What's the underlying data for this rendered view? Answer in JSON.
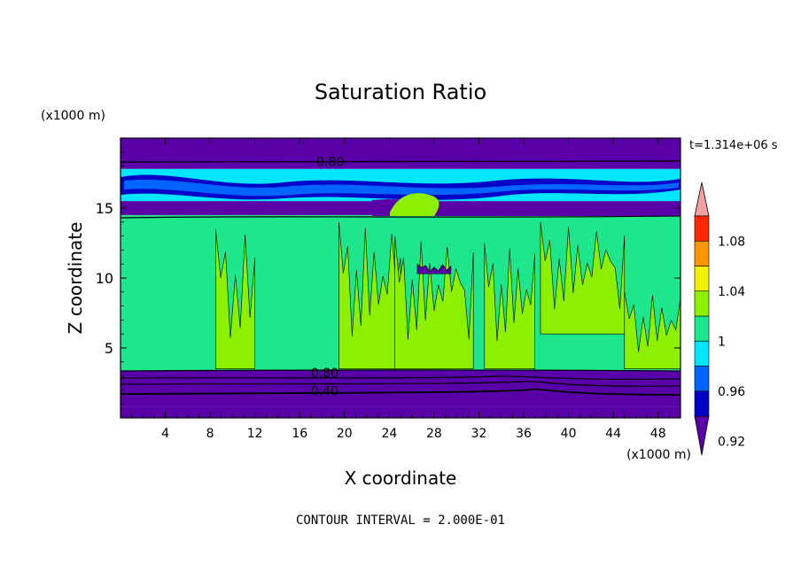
{
  "chart_data": {
    "type": "heatmap",
    "title": "Saturation Ratio",
    "xlabel": "X coordinate",
    "ylabel": "Z coordinate",
    "x_unit": "(x1000 m)",
    "y_unit": "(x1000 m)",
    "time_label": "t=1.314e+06 s",
    "footer": "CONTOUR INTERVAL = 2.000E-01",
    "xlim": [
      0,
      50
    ],
    "ylim": [
      0,
      20
    ],
    "x_ticks": [
      4,
      8,
      12,
      16,
      20,
      24,
      28,
      32,
      36,
      40,
      44,
      48
    ],
    "y_ticks": [
      5,
      10,
      15
    ],
    "contour_labels": [
      {
        "text": "0.80",
        "x": 17.5,
        "z": 18.2
      },
      {
        "text": "0.80",
        "x": 17.0,
        "z": 3.1
      },
      {
        "text": "0.40",
        "x": 17.0,
        "z": 1.8
      }
    ],
    "colorbar": {
      "levels": [
        "1.08",
        "1.04",
        "1",
        "0.96",
        "0.92"
      ],
      "colors": [
        "#5a00a8",
        "#0000c8",
        "#0064ff",
        "#00e6ff",
        "#1ee68c",
        "#8cf000",
        "#f0f000",
        "#ff9600",
        "#ff2800",
        "#f5a0a0"
      ]
    },
    "layers": [
      {
        "z": [
          0.0,
          0.8
        ],
        "value": "< 0.92",
        "color": "#5a00a8"
      },
      {
        "z": [
          0.8,
          3.4
        ],
        "value": "< 0.92",
        "color": "#5a00a8"
      },
      {
        "z": [
          3.4,
          14.5
        ],
        "value": "0.96 - 1.0",
        "color": "#1ee68c"
      },
      {
        "z": [
          14.5,
          15.5
        ],
        "value": "< 0.92",
        "color": "#5a00a8"
      },
      {
        "z": [
          15.5,
          17.8
        ],
        "value": "0.92 - 1.0",
        "color": "#00e6ff"
      },
      {
        "z": [
          17.8,
          20.0
        ],
        "value": "< 0.92",
        "color": "#5a00a8"
      }
    ],
    "regions": [
      {
        "value": "1 - 1.04",
        "color": "#8cf000",
        "x": [
          8.5,
          12.0
        ],
        "z": [
          3.5,
          13.5
        ]
      },
      {
        "value": "1 - 1.04",
        "color": "#8cf000",
        "x": [
          19.5,
          25.0
        ],
        "z": [
          3.5,
          14.0
        ]
      },
      {
        "value": "1 - 1.04",
        "color": "#8cf000",
        "x": [
          24.5,
          31.5
        ],
        "z": [
          3.5,
          13.0
        ]
      },
      {
        "value": "1 - 1.04",
        "color": "#8cf000",
        "x": [
          32.5,
          37.0
        ],
        "z": [
          3.5,
          12.5
        ]
      },
      {
        "value": "1 - 1.04",
        "color": "#8cf000",
        "x": [
          37.5,
          45.0
        ],
        "z": [
          6.0,
          14.0
        ]
      },
      {
        "value": "1 - 1.04",
        "color": "#8cf000",
        "x": [
          45.0,
          50.0
        ],
        "z": [
          3.5,
          9.0
        ]
      },
      {
        "value": "< 0.92",
        "color": "#5a00a8",
        "x": [
          26.5,
          29.5
        ],
        "z": [
          10.3,
          11.0
        ]
      }
    ]
  }
}
